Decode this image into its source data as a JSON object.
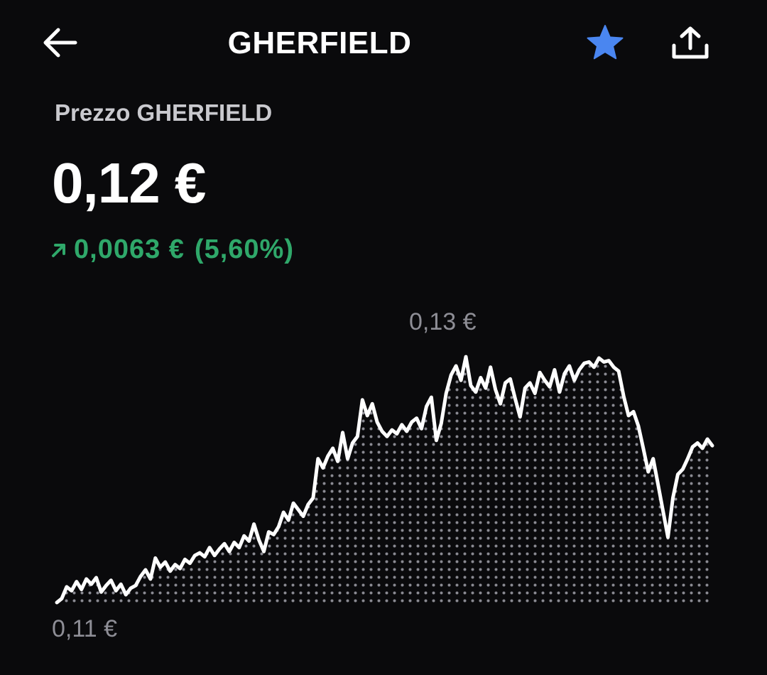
{
  "header": {
    "title": "GHERFIELD",
    "back_icon": "arrow-left-icon",
    "favorite_icon": "star-icon",
    "share_icon": "share-icon",
    "favorite_color": "#4a86f0"
  },
  "price": {
    "label": "Prezzo GHERFIELD",
    "value": "0,12 €",
    "change_amount": "0,0063 €",
    "change_percent": "(5,60%)",
    "change_direction": "up",
    "change_color": "#2fa86a"
  },
  "chart_data": {
    "type": "area",
    "max_label": "0,13 €",
    "min_label": "0,11 €",
    "ylim": [
      0.11,
      0.13
    ],
    "values": [
      0.11,
      0.1103,
      0.1112,
      0.1109,
      0.1116,
      0.111,
      0.1118,
      0.1114,
      0.1119,
      0.1108,
      0.1113,
      0.1117,
      0.1109,
      0.1114,
      0.1106,
      0.1111,
      0.1113,
      0.112,
      0.1125,
      0.1118,
      0.1134,
      0.1127,
      0.1131,
      0.1124,
      0.1129,
      0.1126,
      0.1133,
      0.113,
      0.1136,
      0.1138,
      0.1135,
      0.1142,
      0.1136,
      0.1141,
      0.1145,
      0.1139,
      0.1146,
      0.1142,
      0.1151,
      0.1147,
      0.116,
      0.1148,
      0.1139,
      0.1154,
      0.1152,
      0.1158,
      0.1169,
      0.1163,
      0.1176,
      0.1171,
      0.1166,
      0.1175,
      0.118,
      0.121,
      0.1203,
      0.1212,
      0.1218,
      0.1208,
      0.123,
      0.121,
      0.1222,
      0.1227,
      0.1255,
      0.1243,
      0.1252,
      0.1238,
      0.1231,
      0.1227,
      0.1232,
      0.1229,
      0.1236,
      0.1231,
      0.1238,
      0.1241,
      0.1233,
      0.125,
      0.1257,
      0.1224,
      0.1237,
      0.126,
      0.1274,
      0.1281,
      0.127,
      0.1288,
      0.1266,
      0.1261,
      0.1272,
      0.1264,
      0.128,
      0.1263,
      0.1252,
      0.1268,
      0.1271,
      0.1256,
      0.1242,
      0.1264,
      0.1268,
      0.126,
      0.1276,
      0.127,
      0.1265,
      0.1278,
      0.1261,
      0.1275,
      0.1281,
      0.127,
      0.1278,
      0.1283,
      0.1284,
      0.128,
      0.1287,
      0.1284,
      0.1285,
      0.128,
      0.1277,
      0.1258,
      0.1243,
      0.1246,
      0.1235,
      0.1218,
      0.12,
      0.121,
      0.119,
      0.117,
      0.115,
      0.118,
      0.1198,
      0.1202,
      0.121,
      0.1219,
      0.1222,
      0.1218,
      0.1225,
      0.122
    ]
  }
}
